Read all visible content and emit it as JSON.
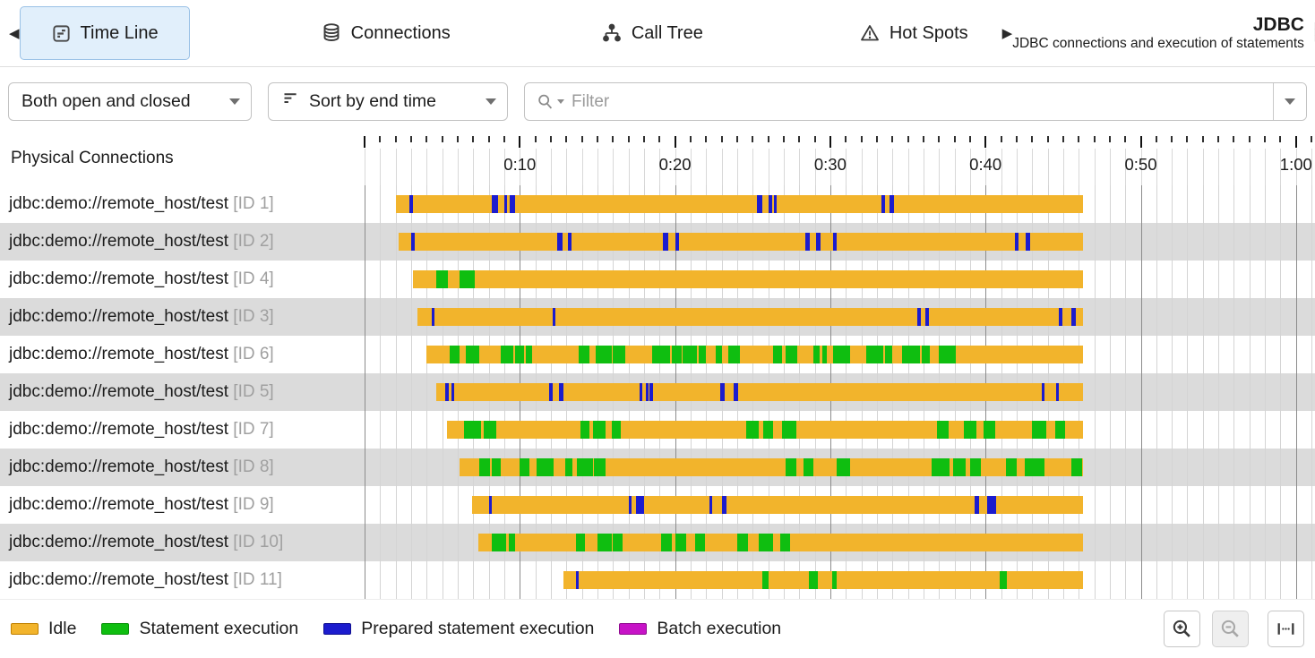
{
  "header": {
    "tabs": [
      {
        "label": "Time Line",
        "selected": true
      },
      {
        "label": "Connections",
        "selected": false
      },
      {
        "label": "Call Tree",
        "selected": false
      },
      {
        "label": "Hot Spots",
        "selected": false
      }
    ],
    "probe_title": "JDBC",
    "probe_subtitle": "JDBC connections and execution of statements"
  },
  "toolbar": {
    "connection_filter": "Both open and closed",
    "sort": "Sort by end time",
    "filter_placeholder": "Filter"
  },
  "timeline": {
    "column_header": "Physical Connections"
  },
  "chart_data": {
    "type": "timeline",
    "time_axis": {
      "unit": "seconds",
      "range": [
        0,
        61
      ],
      "tick_interval": 1,
      "label_interval": 10,
      "labels": [
        {
          "t": 10,
          "label": "0:10"
        },
        {
          "t": 20,
          "label": "0:20"
        },
        {
          "t": 30,
          "label": "0:30"
        },
        {
          "t": 40,
          "label": "0:40"
        },
        {
          "t": 50,
          "label": "0:50"
        },
        {
          "t": 60,
          "label": "1:00"
        }
      ]
    },
    "colors": {
      "idle": "#F2B42C",
      "statement": "#0FBE10",
      "prepared": "#1C1CCE",
      "batch": "#C713C7"
    },
    "rows": [
      {
        "connection": "jdbc:demo://remote_host/test",
        "id_label": "[ID 1]",
        "start": 2.0,
        "end": 46.3,
        "segments": [
          {
            "t": 2.9,
            "w": 0.2,
            "type": "prepared"
          },
          {
            "t": 8.2,
            "w": 0.4,
            "type": "prepared"
          },
          {
            "t": 9.0,
            "w": 0.2,
            "type": "prepared"
          },
          {
            "t": 9.35,
            "w": 0.35,
            "type": "prepared"
          },
          {
            "t": 25.3,
            "w": 0.3,
            "type": "prepared"
          },
          {
            "t": 26.0,
            "w": 0.25,
            "type": "prepared"
          },
          {
            "t": 26.35,
            "w": 0.2,
            "type": "prepared"
          },
          {
            "t": 33.3,
            "w": 0.25,
            "type": "prepared"
          },
          {
            "t": 33.8,
            "w": 0.3,
            "type": "prepared"
          }
        ]
      },
      {
        "connection": "jdbc:demo://remote_host/test",
        "id_label": "[ID 2]",
        "start": 2.2,
        "end": 46.3,
        "segments": [
          {
            "t": 3.0,
            "w": 0.25,
            "type": "prepared"
          },
          {
            "t": 12.4,
            "w": 0.35,
            "type": "prepared"
          },
          {
            "t": 13.1,
            "w": 0.25,
            "type": "prepared"
          },
          {
            "t": 19.2,
            "w": 0.35,
            "type": "prepared"
          },
          {
            "t": 20.0,
            "w": 0.25,
            "type": "prepared"
          },
          {
            "t": 28.4,
            "w": 0.3,
            "type": "prepared"
          },
          {
            "t": 29.1,
            "w": 0.3,
            "type": "prepared"
          },
          {
            "t": 30.2,
            "w": 0.2,
            "type": "prepared"
          },
          {
            "t": 41.9,
            "w": 0.25,
            "type": "prepared"
          },
          {
            "t": 42.6,
            "w": 0.3,
            "type": "prepared"
          }
        ]
      },
      {
        "connection": "jdbc:demo://remote_host/test",
        "id_label": "[ID 4]",
        "start": 3.1,
        "end": 46.3,
        "segments": [
          {
            "t": 4.6,
            "w": 0.75,
            "type": "statement"
          },
          {
            "t": 6.1,
            "w": 1.0,
            "type": "statement"
          }
        ]
      },
      {
        "connection": "jdbc:demo://remote_host/test",
        "id_label": "[ID 3]",
        "start": 3.4,
        "end": 46.3,
        "segments": [
          {
            "t": 4.3,
            "w": 0.2,
            "type": "prepared"
          },
          {
            "t": 12.1,
            "w": 0.2,
            "type": "prepared"
          },
          {
            "t": 35.6,
            "w": 0.25,
            "type": "prepared"
          },
          {
            "t": 36.1,
            "w": 0.25,
            "type": "prepared"
          },
          {
            "t": 44.7,
            "w": 0.25,
            "type": "prepared"
          },
          {
            "t": 45.5,
            "w": 0.3,
            "type": "prepared"
          }
        ]
      },
      {
        "connection": "jdbc:demo://remote_host/test",
        "id_label": "[ID 6]",
        "start": 4.0,
        "end": 46.3,
        "segments": [
          {
            "t": 5.5,
            "w": 0.6,
            "type": "statement"
          },
          {
            "t": 6.5,
            "w": 0.9,
            "type": "statement"
          },
          {
            "t": 8.8,
            "w": 0.8,
            "type": "statement"
          },
          {
            "t": 9.7,
            "w": 0.6,
            "type": "statement"
          },
          {
            "t": 10.4,
            "w": 0.4,
            "type": "statement"
          },
          {
            "t": 13.8,
            "w": 0.7,
            "type": "statement"
          },
          {
            "t": 14.9,
            "w": 1.0,
            "type": "statement"
          },
          {
            "t": 16.0,
            "w": 0.8,
            "type": "statement"
          },
          {
            "t": 18.5,
            "w": 1.2,
            "type": "statement"
          },
          {
            "t": 19.8,
            "w": 0.6,
            "type": "statement"
          },
          {
            "t": 20.5,
            "w": 0.9,
            "type": "statement"
          },
          {
            "t": 21.5,
            "w": 0.5,
            "type": "statement"
          },
          {
            "t": 22.6,
            "w": 0.4,
            "type": "statement"
          },
          {
            "t": 23.4,
            "w": 0.8,
            "type": "statement"
          },
          {
            "t": 26.3,
            "w": 0.6,
            "type": "statement"
          },
          {
            "t": 27.1,
            "w": 0.8,
            "type": "statement"
          },
          {
            "t": 28.9,
            "w": 0.4,
            "type": "statement"
          },
          {
            "t": 29.5,
            "w": 0.3,
            "type": "statement"
          },
          {
            "t": 30.2,
            "w": 1.1,
            "type": "statement"
          },
          {
            "t": 32.3,
            "w": 1.1,
            "type": "statement"
          },
          {
            "t": 33.5,
            "w": 0.5,
            "type": "statement"
          },
          {
            "t": 34.6,
            "w": 1.2,
            "type": "statement"
          },
          {
            "t": 35.9,
            "w": 0.5,
            "type": "statement"
          },
          {
            "t": 37.0,
            "w": 1.1,
            "type": "statement"
          }
        ]
      },
      {
        "connection": "jdbc:demo://remote_host/test",
        "id_label": "[ID 5]",
        "start": 4.6,
        "end": 46.3,
        "segments": [
          {
            "t": 5.2,
            "w": 0.2,
            "type": "prepared"
          },
          {
            "t": 5.6,
            "w": 0.2,
            "type": "prepared"
          },
          {
            "t": 11.9,
            "w": 0.2,
            "type": "prepared"
          },
          {
            "t": 12.5,
            "w": 0.3,
            "type": "prepared"
          },
          {
            "t": 17.7,
            "w": 0.2,
            "type": "prepared"
          },
          {
            "t": 18.1,
            "w": 0.15,
            "type": "prepared"
          },
          {
            "t": 18.35,
            "w": 0.25,
            "type": "prepared"
          },
          {
            "t": 22.9,
            "w": 0.3,
            "type": "prepared"
          },
          {
            "t": 23.8,
            "w": 0.25,
            "type": "prepared"
          },
          {
            "t": 43.6,
            "w": 0.2,
            "type": "prepared"
          },
          {
            "t": 44.55,
            "w": 0.2,
            "type": "prepared"
          }
        ]
      },
      {
        "connection": "jdbc:demo://remote_host/test",
        "id_label": "[ID 7]",
        "start": 5.3,
        "end": 46.3,
        "segments": [
          {
            "t": 6.4,
            "w": 1.1,
            "type": "statement"
          },
          {
            "t": 7.7,
            "w": 0.8,
            "type": "statement"
          },
          {
            "t": 13.9,
            "w": 0.6,
            "type": "statement"
          },
          {
            "t": 14.7,
            "w": 0.8,
            "type": "statement"
          },
          {
            "t": 15.9,
            "w": 0.6,
            "type": "statement"
          },
          {
            "t": 24.6,
            "w": 0.8,
            "type": "statement"
          },
          {
            "t": 25.7,
            "w": 0.6,
            "type": "statement"
          },
          {
            "t": 26.9,
            "w": 0.9,
            "type": "statement"
          },
          {
            "t": 36.9,
            "w": 0.7,
            "type": "statement"
          },
          {
            "t": 38.6,
            "w": 0.8,
            "type": "statement"
          },
          {
            "t": 39.9,
            "w": 0.7,
            "type": "statement"
          },
          {
            "t": 43.0,
            "w": 0.9,
            "type": "statement"
          },
          {
            "t": 44.5,
            "w": 0.6,
            "type": "statement"
          }
        ]
      },
      {
        "connection": "jdbc:demo://remote_host/test",
        "id_label": "[ID 8]",
        "start": 6.1,
        "end": 46.3,
        "segments": [
          {
            "t": 7.4,
            "w": 0.7,
            "type": "statement"
          },
          {
            "t": 8.2,
            "w": 0.6,
            "type": "statement"
          },
          {
            "t": 10.0,
            "w": 0.6,
            "type": "statement"
          },
          {
            "t": 11.1,
            "w": 1.1,
            "type": "statement"
          },
          {
            "t": 12.9,
            "w": 0.5,
            "type": "statement"
          },
          {
            "t": 13.7,
            "w": 1.0,
            "type": "statement"
          },
          {
            "t": 14.8,
            "w": 0.7,
            "type": "statement"
          },
          {
            "t": 27.1,
            "w": 0.7,
            "type": "statement"
          },
          {
            "t": 28.3,
            "w": 0.6,
            "type": "statement"
          },
          {
            "t": 30.4,
            "w": 0.9,
            "type": "statement"
          },
          {
            "t": 36.5,
            "w": 1.2,
            "type": "statement"
          },
          {
            "t": 37.9,
            "w": 0.8,
            "type": "statement"
          },
          {
            "t": 39.0,
            "w": 0.7,
            "type": "statement"
          },
          {
            "t": 41.3,
            "w": 0.7,
            "type": "statement"
          },
          {
            "t": 42.5,
            "w": 1.3,
            "type": "statement"
          },
          {
            "t": 45.5,
            "w": 0.7,
            "type": "statement"
          }
        ]
      },
      {
        "connection": "jdbc:demo://remote_host/test",
        "id_label": "[ID 9]",
        "start": 6.9,
        "end": 46.3,
        "segments": [
          {
            "t": 8.0,
            "w": 0.2,
            "type": "prepared"
          },
          {
            "t": 17.0,
            "w": 0.2,
            "type": "prepared"
          },
          {
            "t": 17.5,
            "w": 0.5,
            "type": "prepared"
          },
          {
            "t": 22.2,
            "w": 0.15,
            "type": "prepared"
          },
          {
            "t": 23.0,
            "w": 0.3,
            "type": "prepared"
          },
          {
            "t": 39.3,
            "w": 0.3,
            "type": "prepared"
          },
          {
            "t": 40.1,
            "w": 0.15,
            "type": "prepared"
          },
          {
            "t": 40.3,
            "w": 0.4,
            "type": "prepared"
          }
        ]
      },
      {
        "connection": "jdbc:demo://remote_host/test",
        "id_label": "[ID 10]",
        "start": 7.3,
        "end": 46.3,
        "segments": [
          {
            "t": 8.2,
            "w": 0.9,
            "type": "statement"
          },
          {
            "t": 9.3,
            "w": 0.4,
            "type": "statement"
          },
          {
            "t": 13.6,
            "w": 0.6,
            "type": "statement"
          },
          {
            "t": 15.0,
            "w": 0.9,
            "type": "statement"
          },
          {
            "t": 16.0,
            "w": 0.6,
            "type": "statement"
          },
          {
            "t": 19.1,
            "w": 0.7,
            "type": "statement"
          },
          {
            "t": 20.0,
            "w": 0.7,
            "type": "statement"
          },
          {
            "t": 21.3,
            "w": 0.6,
            "type": "statement"
          },
          {
            "t": 24.0,
            "w": 0.7,
            "type": "statement"
          },
          {
            "t": 25.4,
            "w": 0.9,
            "type": "statement"
          },
          {
            "t": 26.8,
            "w": 0.6,
            "type": "statement"
          }
        ]
      },
      {
        "connection": "jdbc:demo://remote_host/test",
        "id_label": "[ID 11]",
        "start": 12.8,
        "end": 46.3,
        "segments": [
          {
            "t": 13.6,
            "w": 0.15,
            "type": "prepared"
          },
          {
            "t": 25.6,
            "w": 0.4,
            "type": "statement"
          },
          {
            "t": 28.6,
            "w": 0.6,
            "type": "statement"
          },
          {
            "t": 30.1,
            "w": 0.3,
            "type": "statement"
          },
          {
            "t": 40.9,
            "w": 0.5,
            "type": "statement"
          }
        ]
      }
    ]
  },
  "legend": {
    "items": [
      {
        "label": "Idle",
        "color": "#F2B42C",
        "border": "#C08000"
      },
      {
        "label": "Statement execution",
        "color": "#0FBE10",
        "border": "#089008"
      },
      {
        "label": "Prepared statement execution",
        "color": "#1C1CCE",
        "border": "#101090"
      },
      {
        "label": "Batch execution",
        "color": "#C713C7",
        "border": "#8F0A8F"
      }
    ]
  }
}
